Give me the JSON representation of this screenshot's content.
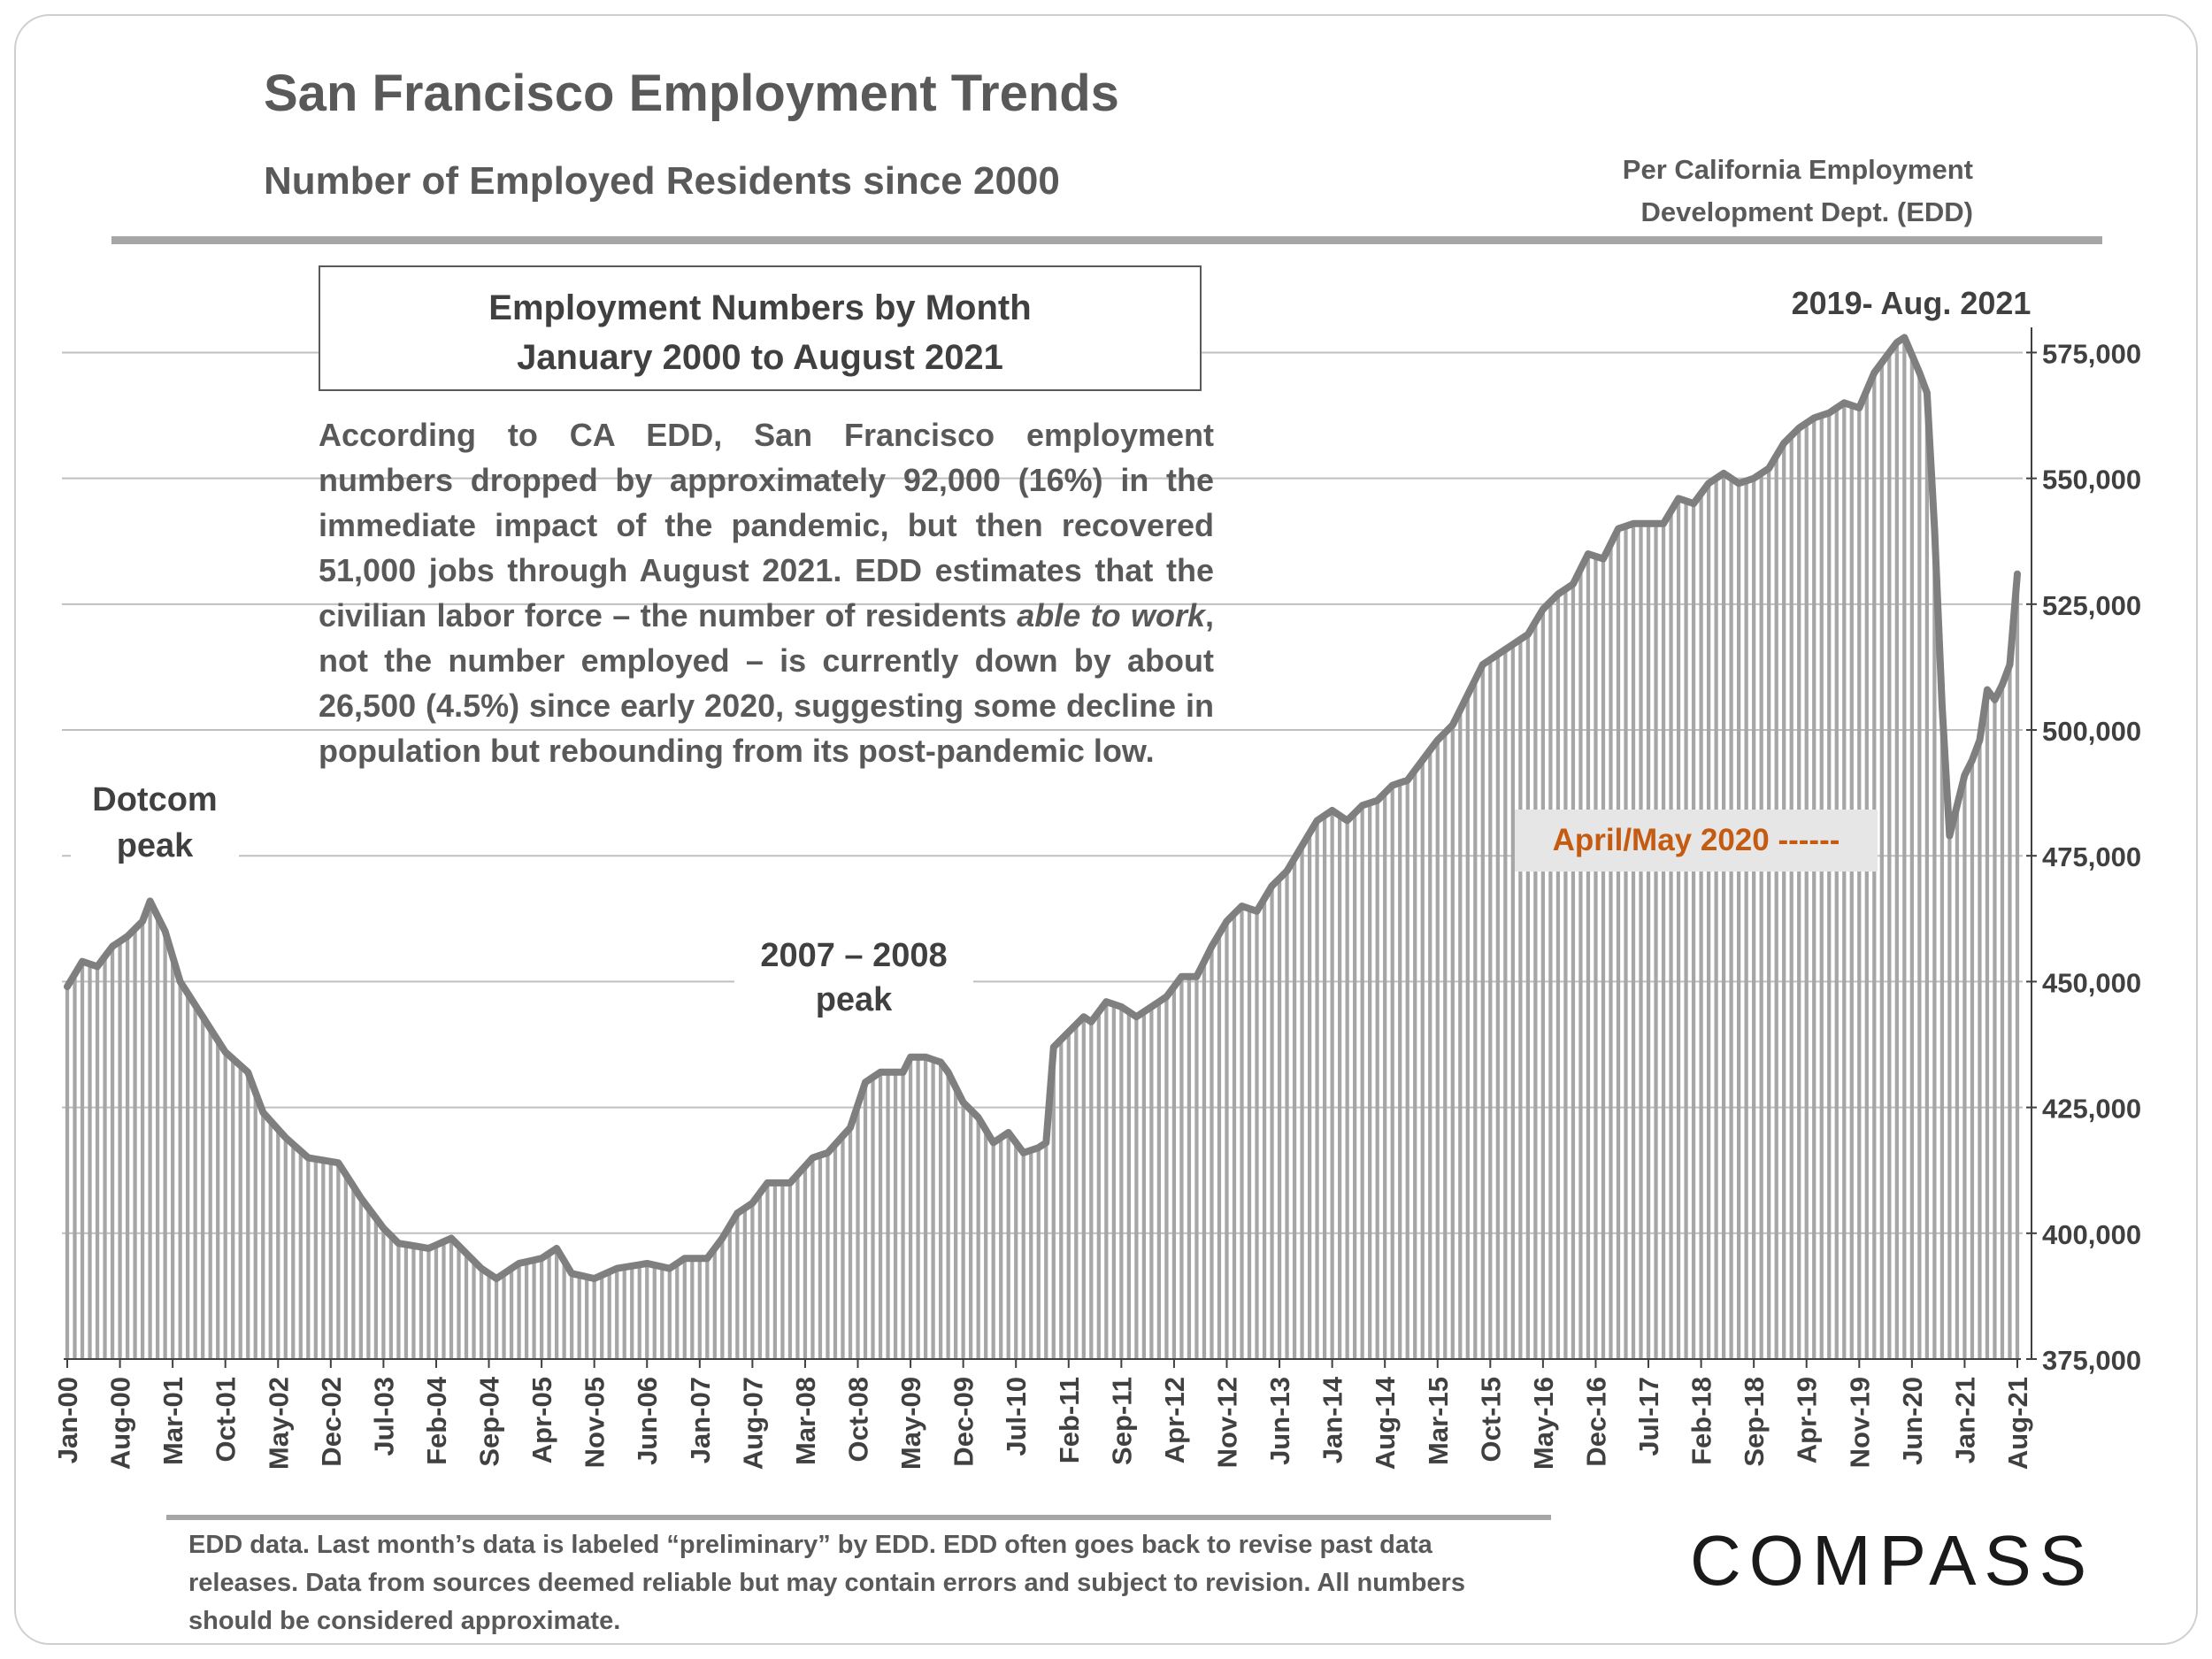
{
  "header": {
    "title": "San Francisco Employment Trends",
    "subtitle": "Number of Employed Residents since 2000",
    "source_line1": "Per California Employment",
    "source_line2": "Development Dept. (EDD)"
  },
  "box": {
    "line1": "Employment Numbers by Month",
    "line2": "January 2000 to August 2021"
  },
  "note": {
    "part1": "According to CA EDD, San Francisco employment numbers dropped by approximately 92,000 (16%) in the immediate impact of the pandemic, but then recovered 51,000 jobs through August 2021. EDD estimates that the civilian labor force – the number of residents ",
    "italic": "able to work",
    "part2": ", not the number employed – is currently down by about 26,500 (4.5%) since early 2020, suggesting some decline in population but rebounding from its post-pandemic low."
  },
  "annotations": {
    "dotcom_line1": "Dotcom",
    "dotcom_line2": "peak",
    "peak08_line1": "2007 – 2008",
    "peak08_line2": "peak",
    "recent": "2019- Aug. 2021",
    "aprmay": "April/May 2020 ------"
  },
  "footer": {
    "text": "EDD data. Last month’s data is labeled “preliminary” by EDD. EDD often goes back to revise past data releases. Data from sources deemed reliable but may contain errors and subject to revision. All numbers should be considered approximate."
  },
  "logo": {
    "text": "COMPASS"
  },
  "colors": {
    "line": "#7f7f7f",
    "bars": "#a6a6a6",
    "grid": "#bfbfbf",
    "axis": "#404040",
    "annotation": "#c55a11"
  },
  "chart_data": {
    "type": "bar",
    "overlay": "line",
    "title": "Employment Numbers by Month",
    "subtitle": "January 2000 to August 2021",
    "xlabel": "",
    "ylabel": "",
    "ylim": [
      375000,
      580000
    ],
    "yticks": [
      375000,
      400000,
      425000,
      450000,
      475000,
      500000,
      525000,
      550000,
      575000
    ],
    "ytick_labels": [
      "375,000",
      "400,000",
      "425,000",
      "450,000",
      "475,000",
      "500,000",
      "525,000",
      "550,000",
      "575,000"
    ],
    "x_start": "Jan-00",
    "n_months": 260,
    "xtick_labels": [
      "Jan-00",
      "Aug-00",
      "Mar-01",
      "Oct-01",
      "May-02",
      "Dec-02",
      "Jul-03",
      "Feb-04",
      "Sep-04",
      "Apr-05",
      "Nov-05",
      "Jun-06",
      "Jan-07",
      "Aug-07",
      "Mar-08",
      "Oct-08",
      "May-09",
      "Dec-09",
      "Jul-10",
      "Feb-11",
      "Sep-11",
      "Apr-12",
      "Nov-12",
      "Jun-13",
      "Jan-14",
      "Aug-14",
      "Mar-15",
      "Oct-15",
      "May-16",
      "Dec-16",
      "Jul-17",
      "Feb-18",
      "Sep-18",
      "Apr-19",
      "Nov-19",
      "Jun-20",
      "Jan-21",
      "Aug-21"
    ],
    "xtick_step_months": 7,
    "anchors": [
      [
        0,
        449000
      ],
      [
        2,
        454000
      ],
      [
        4,
        453000
      ],
      [
        6,
        457000
      ],
      [
        8,
        459000
      ],
      [
        10,
        462000
      ],
      [
        11,
        466000
      ],
      [
        13,
        460000
      ],
      [
        15,
        450000
      ],
      [
        18,
        443000
      ],
      [
        21,
        436000
      ],
      [
        24,
        432000
      ],
      [
        26,
        424000
      ],
      [
        29,
        419000
      ],
      [
        32,
        415000
      ],
      [
        36,
        414000
      ],
      [
        39,
        407000
      ],
      [
        42,
        401000
      ],
      [
        44,
        398000
      ],
      [
        48,
        397000
      ],
      [
        51,
        399000
      ],
      [
        53,
        396000
      ],
      [
        55,
        393000
      ],
      [
        57,
        391000
      ],
      [
        60,
        394000
      ],
      [
        63,
        395000
      ],
      [
        65,
        397000
      ],
      [
        67,
        392000
      ],
      [
        70,
        391000
      ],
      [
        73,
        393000
      ],
      [
        77,
        394000
      ],
      [
        80,
        393000
      ],
      [
        82,
        395000
      ],
      [
        85,
        395000
      ],
      [
        87,
        399000
      ],
      [
        89,
        404000
      ],
      [
        91,
        406000
      ],
      [
        93,
        410000
      ],
      [
        96,
        410000
      ],
      [
        99,
        415000
      ],
      [
        101,
        416000
      ],
      [
        104,
        421000
      ],
      [
        106,
        430000
      ],
      [
        108,
        432000
      ],
      [
        111,
        432000
      ],
      [
        112,
        435000
      ],
      [
        114,
        435000
      ],
      [
        116,
        434000
      ],
      [
        117,
        432000
      ],
      [
        119,
        426000
      ],
      [
        121,
        423000
      ],
      [
        123,
        418000
      ],
      [
        125,
        420000
      ],
      [
        127,
        416000
      ],
      [
        129,
        417000
      ],
      [
        130,
        418000
      ],
      [
        131,
        437000
      ],
      [
        133,
        440000
      ],
      [
        135,
        443000
      ],
      [
        136,
        442000
      ],
      [
        138,
        446000
      ],
      [
        140,
        445000
      ],
      [
        142,
        443000
      ],
      [
        144,
        445000
      ],
      [
        146,
        447000
      ],
      [
        148,
        451000
      ],
      [
        150,
        451000
      ],
      [
        152,
        457000
      ],
      [
        154,
        462000
      ],
      [
        156,
        465000
      ],
      [
        158,
        464000
      ],
      [
        160,
        469000
      ],
      [
        162,
        472000
      ],
      [
        164,
        477000
      ],
      [
        166,
        482000
      ],
      [
        168,
        484000
      ],
      [
        170,
        482000
      ],
      [
        172,
        485000
      ],
      [
        174,
        486000
      ],
      [
        176,
        489000
      ],
      [
        178,
        490000
      ],
      [
        180,
        494000
      ],
      [
        182,
        498000
      ],
      [
        184,
        501000
      ],
      [
        186,
        507000
      ],
      [
        188,
        513000
      ],
      [
        190,
        515000
      ],
      [
        192,
        517000
      ],
      [
        194,
        519000
      ],
      [
        196,
        524000
      ],
      [
        198,
        527000
      ],
      [
        200,
        529000
      ],
      [
        202,
        535000
      ],
      [
        204,
        534000
      ],
      [
        206,
        540000
      ],
      [
        208,
        541000
      ],
      [
        210,
        541000
      ],
      [
        212,
        541000
      ],
      [
        214,
        546000
      ],
      [
        216,
        545000
      ],
      [
        218,
        549000
      ],
      [
        220,
        551000
      ],
      [
        222,
        549000
      ],
      [
        224,
        550000
      ],
      [
        226,
        552000
      ],
      [
        228,
        557000
      ],
      [
        230,
        560000
      ],
      [
        232,
        562000
      ],
      [
        234,
        563000
      ],
      [
        236,
        565000
      ],
      [
        238,
        564000
      ],
      [
        240,
        571000
      ],
      [
        242,
        575000
      ],
      [
        243,
        577000
      ],
      [
        244,
        578000
      ],
      [
        246,
        571000
      ],
      [
        247,
        567000
      ],
      [
        248,
        540000
      ],
      [
        249,
        505000
      ],
      [
        250,
        479000
      ],
      [
        251,
        485000
      ],
      [
        252,
        491000
      ],
      [
        253,
        494000
      ],
      [
        254,
        498000
      ],
      [
        255,
        508000
      ],
      [
        256,
        506000
      ],
      [
        257,
        509000
      ],
      [
        258,
        513000
      ],
      [
        259,
        531000
      ]
    ]
  }
}
